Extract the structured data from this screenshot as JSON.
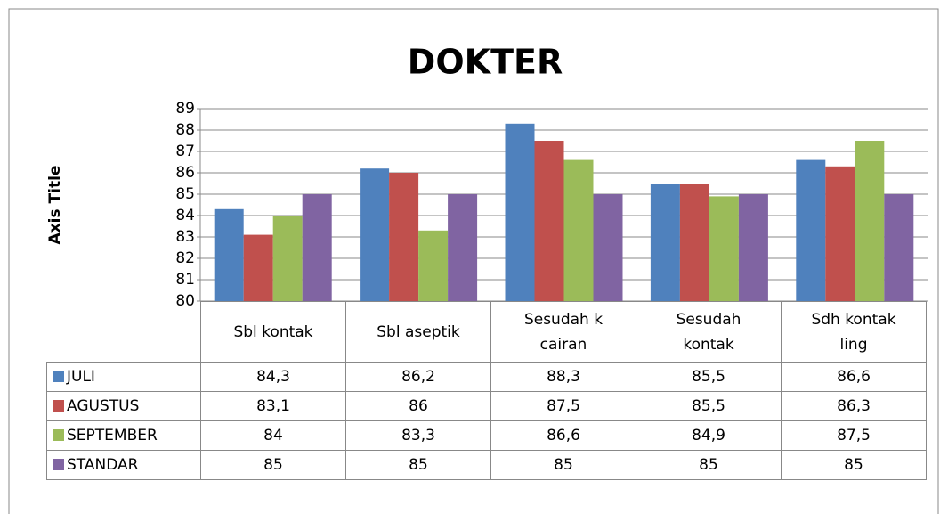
{
  "chart_data": {
    "type": "bar",
    "title": "DOKTER",
    "y_label": "Axis Title",
    "categories": [
      "Sbl kontak",
      "Sbl aseptik",
      "Sesudah k cairan",
      "Sesudah kontak",
      "Sdh kontak ling"
    ],
    "series": [
      {
        "name": "JULI",
        "color": "#4f81bd",
        "values": [
          84.3,
          86.2,
          88.3,
          85.5,
          86.6
        ],
        "value_labels": [
          "84,3",
          "86,2",
          "88,3",
          "85,5",
          "86,6"
        ]
      },
      {
        "name": "AGUSTUS",
        "color": "#c0504d",
        "values": [
          83.1,
          86,
          87.5,
          85.5,
          86.3
        ],
        "value_labels": [
          "83,1",
          "86",
          "87,5",
          "85,5",
          "86,3"
        ]
      },
      {
        "name": "SEPTEMBER",
        "color": "#9bbb59",
        "values": [
          84,
          83.3,
          86.6,
          84.9,
          87.5
        ],
        "value_labels": [
          "84",
          "83,3",
          "86,6",
          "84,9",
          "87,5"
        ]
      },
      {
        "name": "STANDAR",
        "color": "#8064a2",
        "values": [
          85,
          85,
          85,
          85,
          85
        ],
        "value_labels": [
          "85",
          "85",
          "85",
          "85",
          "85"
        ]
      }
    ],
    "ylim": [
      80,
      89
    ],
    "yticks": [
      80,
      81,
      82,
      83,
      84,
      85,
      86,
      87,
      88,
      89
    ],
    "grid": true
  }
}
